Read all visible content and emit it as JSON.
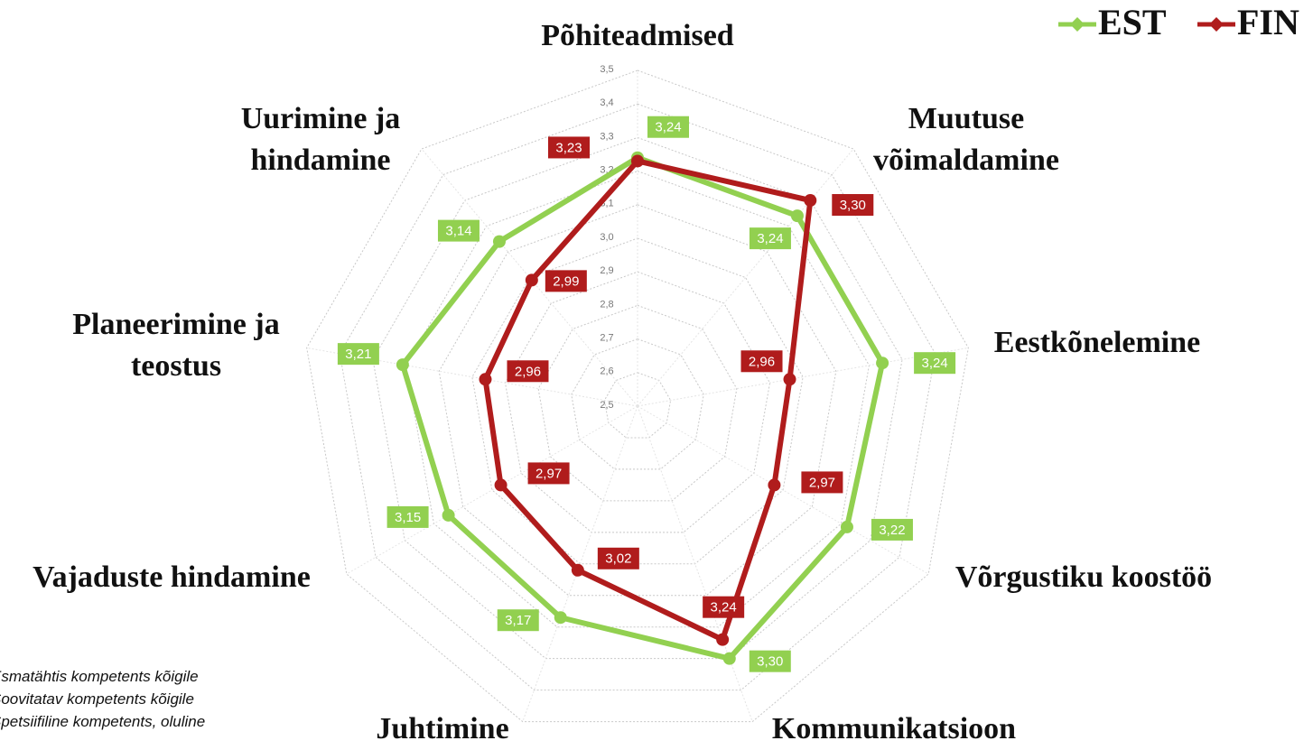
{
  "chart_data": {
    "type": "radar",
    "categories": [
      "Põhiteadmised",
      "Muutuse võimaldamine",
      "Eestkõnelemine",
      "Võrgustiku koostöö",
      "Kommunikatsioon",
      "Juhtimine",
      "Vajaduste hindamine",
      "Planeerimine ja teostus",
      "Uurimine ja hindamine"
    ],
    "series": [
      {
        "name": "EST",
        "color": "#92d050",
        "values": [
          3.24,
          3.24,
          3.24,
          3.22,
          3.3,
          3.17,
          3.15,
          3.21,
          3.14
        ],
        "value_labels": [
          "3,24",
          "3,24",
          "3,24",
          "3,22",
          "3,30",
          "3,17",
          "3,15",
          "3,21",
          "3,14"
        ]
      },
      {
        "name": "FIN",
        "color": "#b01c1c",
        "values": [
          3.23,
          3.3,
          2.96,
          2.97,
          3.24,
          3.02,
          2.97,
          2.96,
          2.99
        ],
        "value_labels": [
          "3,23",
          "3,30",
          "2,96",
          "2,97",
          "3,24",
          "3,02",
          "2,97",
          "2,96",
          "2,99"
        ]
      }
    ],
    "rlim": [
      2.5,
      3.5
    ],
    "rticks": [
      {
        "value": 2.5,
        "label": "2,5"
      },
      {
        "value": 2.6,
        "label": "2,6"
      },
      {
        "value": 2.7,
        "label": "2,7"
      },
      {
        "value": 2.8,
        "label": "2,8"
      },
      {
        "value": 2.9,
        "label": "2,9"
      },
      {
        "value": 3.0,
        "label": "3,0"
      },
      {
        "value": 3.1,
        "label": "3,1"
      },
      {
        "value": 3.2,
        "label": "3,2"
      },
      {
        "value": 3.3,
        "label": "3,3"
      },
      {
        "value": 3.4,
        "label": "3,4"
      },
      {
        "value": 3.5,
        "label": "3,5"
      }
    ],
    "grid": true,
    "legend": "top-right",
    "notes": [
      "Esmatähtis kompetents kõigile",
      "Soovitatav kompetents kõigile",
      "Spetsiifiline kompetents, oluline"
    ]
  }
}
